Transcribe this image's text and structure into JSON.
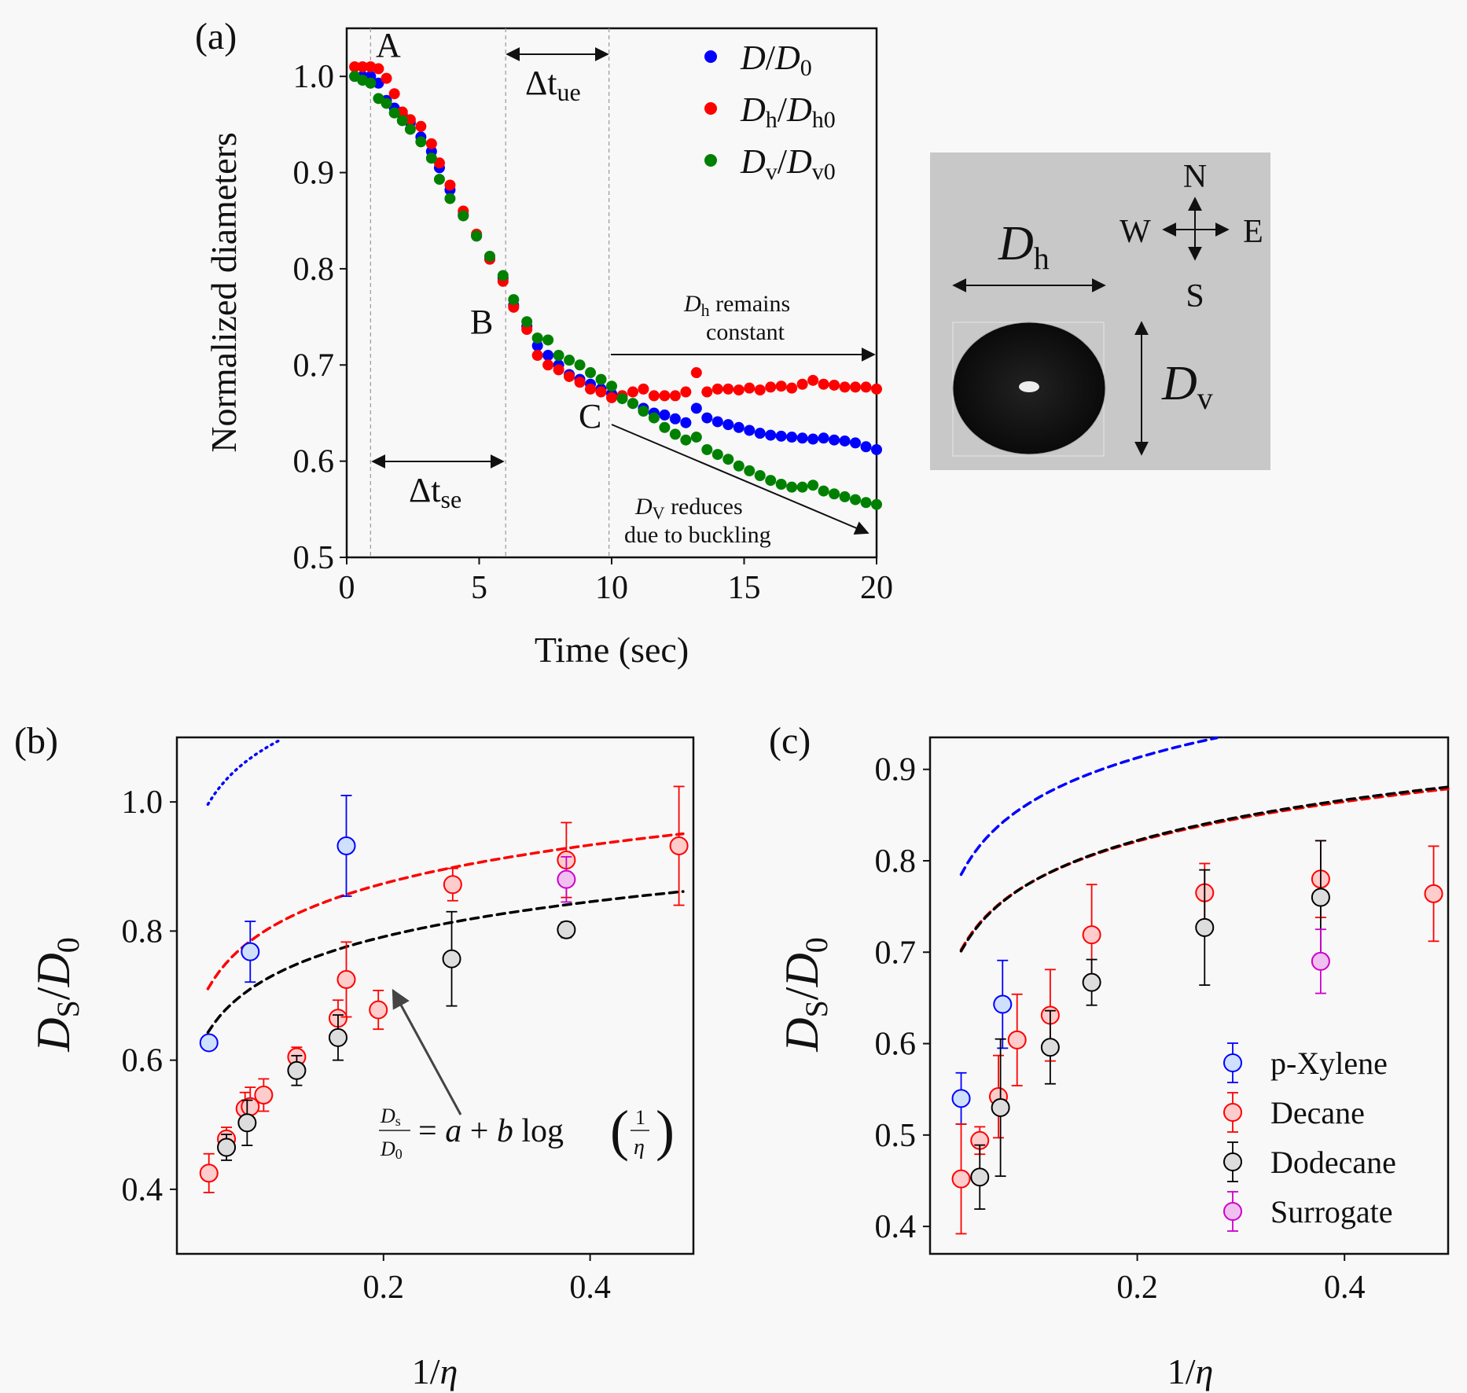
{
  "chart_data": [
    {
      "panel": "(a)",
      "type": "scatter",
      "xlabel": "Time (sec)",
      "ylabel": "Normalized diameters",
      "xlim": [
        0,
        20
      ],
      "ylim": [
        0.5,
        1.05
      ],
      "xticks": [
        "0",
        "5",
        "10",
        "15",
        "20"
      ],
      "yticks": [
        "0.5",
        "0.6",
        "0.7",
        "0.8",
        "0.9",
        "1.0"
      ],
      "series": [
        {
          "name": "D/D0",
          "label_main": "D",
          "label_den": "D",
          "label_den_sub": "0",
          "label_main_sub": "",
          "color": "#0000ff",
          "x": [
            0.3,
            0.6,
            0.9,
            1.2,
            1.5,
            1.8,
            2.1,
            2.4,
            2.8,
            3.2,
            3.5,
            3.9,
            4.4,
            4.9,
            5.4,
            5.9,
            6.3,
            6.8,
            7.2,
            7.6,
            8.0,
            8.4,
            8.8,
            9.2,
            9.6,
            10.0,
            10.4,
            10.8,
            11.2,
            11.6,
            12.0,
            12.4,
            12.8,
            13.2,
            13.6,
            14.0,
            14.4,
            14.8,
            15.2,
            15.6,
            16.0,
            16.4,
            16.8,
            17.2,
            17.6,
            18.0,
            18.4,
            18.8,
            19.2,
            19.6,
            20.0
          ],
          "y": [
            1.0,
            1.0,
            1.0,
            0.993,
            0.975,
            0.967,
            0.96,
            0.952,
            0.937,
            0.922,
            0.905,
            0.882,
            0.856,
            0.834,
            0.81,
            0.79,
            0.762,
            0.74,
            0.72,
            0.71,
            0.7,
            0.69,
            0.685,
            0.68,
            0.675,
            0.67,
            0.668,
            0.66,
            0.655,
            0.65,
            0.648,
            0.644,
            0.64,
            0.655,
            0.645,
            0.641,
            0.638,
            0.635,
            0.632,
            0.629,
            0.627,
            0.626,
            0.625,
            0.624,
            0.623,
            0.624,
            0.622,
            0.621,
            0.619,
            0.615,
            0.612
          ]
        },
        {
          "name": "Dh/Dh0",
          "label_main": "D",
          "label_main_sub": "h",
          "label_den": "D",
          "label_den_sub": "h0",
          "color": "#ff0000",
          "x": [
            0.3,
            0.6,
            0.9,
            1.2,
            1.5,
            1.8,
            2.1,
            2.4,
            2.8,
            3.2,
            3.5,
            3.9,
            4.4,
            4.9,
            5.4,
            5.9,
            6.3,
            6.8,
            7.2,
            7.6,
            8.0,
            8.4,
            8.8,
            9.2,
            9.6,
            10.0,
            10.4,
            10.8,
            11.2,
            11.6,
            12.0,
            12.4,
            12.8,
            13.2,
            13.6,
            14.0,
            14.4,
            14.8,
            15.2,
            15.6,
            16.0,
            16.4,
            16.8,
            17.2,
            17.6,
            18.0,
            18.4,
            18.8,
            19.2,
            19.6,
            20.0
          ],
          "y": [
            1.01,
            1.01,
            1.01,
            1.008,
            0.998,
            0.982,
            0.963,
            0.955,
            0.948,
            0.93,
            0.91,
            0.887,
            0.86,
            0.836,
            0.81,
            0.787,
            0.76,
            0.737,
            0.71,
            0.7,
            0.695,
            0.688,
            0.682,
            0.675,
            0.672,
            0.666,
            0.668,
            0.672,
            0.675,
            0.668,
            0.668,
            0.668,
            0.672,
            0.692,
            0.672,
            0.675,
            0.675,
            0.674,
            0.676,
            0.674,
            0.677,
            0.678,
            0.676,
            0.68,
            0.684,
            0.68,
            0.679,
            0.677,
            0.677,
            0.677,
            0.675
          ]
        },
        {
          "name": "Dv/Dv0",
          "label_main": "D",
          "label_main_sub": "v",
          "label_den": "D",
          "label_den_sub": "v0",
          "color": "#008000",
          "x": [
            0.3,
            0.6,
            0.9,
            1.2,
            1.5,
            1.8,
            2.1,
            2.4,
            2.8,
            3.2,
            3.5,
            3.9,
            4.4,
            4.9,
            5.4,
            5.9,
            6.3,
            6.8,
            7.2,
            7.6,
            8.0,
            8.4,
            8.8,
            9.2,
            9.6,
            10.0,
            10.4,
            10.8,
            11.2,
            11.6,
            12.0,
            12.4,
            12.8,
            13.2,
            13.6,
            14.0,
            14.4,
            14.8,
            15.2,
            15.6,
            16.0,
            16.4,
            16.8,
            17.2,
            17.6,
            18.0,
            18.4,
            18.8,
            19.2,
            19.6,
            20.0
          ],
          "y": [
            1.0,
            0.996,
            0.993,
            0.977,
            0.972,
            0.962,
            0.954,
            0.945,
            0.932,
            0.915,
            0.893,
            0.873,
            0.855,
            0.834,
            0.813,
            0.793,
            0.768,
            0.745,
            0.728,
            0.726,
            0.71,
            0.705,
            0.7,
            0.692,
            0.685,
            0.678,
            0.665,
            0.66,
            0.652,
            0.645,
            0.635,
            0.628,
            0.622,
            0.625,
            0.612,
            0.607,
            0.602,
            0.595,
            0.59,
            0.585,
            0.58,
            0.576,
            0.573,
            0.573,
            0.575,
            0.569,
            0.566,
            0.563,
            0.56,
            0.557,
            0.555
          ]
        }
      ],
      "annotations": {
        "A": "A",
        "B": "B",
        "C": "C",
        "dt_se": "Δt",
        "dt_se_sub": "se",
        "dt_ue": "Δt",
        "dt_ue_sub": "ue",
        "dh_line1_main": "D",
        "dh_line1_sub": "h",
        "dh_line1_rest": " remains",
        "dh_line2": "constant",
        "dv_line1_main": "D",
        "dv_line1_sub": "V",
        "dv_line1_rest": " reduces",
        "dv_line2": "due to buckling"
      }
    },
    {
      "panel": "(b)",
      "type": "scatter",
      "xlabel": "1/η",
      "ylabel": "Ds/D0",
      "xlim": [
        0.0,
        0.5
      ],
      "ylim": [
        0.3,
        1.1
      ],
      "xticks": [
        "0.2",
        "0.4"
      ],
      "yticks": [
        "0.4",
        "0.6",
        "0.8",
        "1.0"
      ],
      "formula": "Ds/D0 = a + b log(1/η)",
      "series": [
        {
          "name": "p-Xylene",
          "color": "#0000ff",
          "fill": "#cfe0ff",
          "x": [
            0.031,
            0.071,
            0.164
          ],
          "y": [
            0.627,
            0.768,
            0.932
          ],
          "err": [
            0.0,
            0.047,
            0.078
          ]
        },
        {
          "name": "Decane",
          "color": "#ff0000",
          "fill": "#ffcccc",
          "x": [
            0.031,
            0.048,
            0.066,
            0.071,
            0.084,
            0.116,
            0.156,
            0.164,
            0.195,
            0.267,
            0.377,
            0.486
          ],
          "y": [
            0.425,
            0.478,
            0.525,
            0.528,
            0.546,
            0.605,
            0.665,
            0.725,
            0.678,
            0.872,
            0.91,
            0.932
          ],
          "err": [
            0.03,
            0.018,
            0.025,
            0.03,
            0.025,
            0.015,
            0.028,
            0.058,
            0.03,
            0.025,
            0.058,
            0.092
          ]
        },
        {
          "name": "Dodecane",
          "color": "#000000",
          "fill": "#dddddd",
          "x": [
            0.048,
            0.068,
            0.116,
            0.156,
            0.266,
            0.377
          ],
          "y": [
            0.465,
            0.503,
            0.584,
            0.635,
            0.757,
            0.802
          ],
          "err": [
            0.02,
            0.035,
            0.023,
            0.035,
            0.073,
            0.012
          ]
        },
        {
          "name": "Surrogate",
          "color": "#cc00cc",
          "fill": "#f0c0f0",
          "x": [
            0.377
          ],
          "y": [
            0.88
          ],
          "err": [
            0.035
          ]
        }
      ],
      "fits": [
        {
          "color": "#0000ff",
          "style": "dotted",
          "a": 1.287,
          "b": 0.191,
          "xmin": 0.03,
          "xmax": 0.5
        },
        {
          "color": "#ff0000",
          "style": "dashed",
          "a": 1.012,
          "b": 0.198,
          "xmin": 0.03,
          "xmax": 0.49
        },
        {
          "color": "#000000",
          "style": "dashed",
          "a": 0.917,
          "b": 0.18,
          "xmin": 0.03,
          "xmax": 0.49
        }
      ]
    },
    {
      "panel": "(c)",
      "type": "scatter",
      "xlabel": "1/η",
      "ylabel": "Ds/D0",
      "xlim": [
        0.0,
        0.5
      ],
      "ylim": [
        0.37,
        0.935
      ],
      "xticks": [
        "0.2",
        "0.4"
      ],
      "yticks": [
        "0.4",
        "0.5",
        "0.6",
        "0.7",
        "0.8",
        "0.9"
      ],
      "legend": [
        "p-Xylene",
        "Decane",
        "Dodecane",
        "Surrogate"
      ],
      "series": [
        {
          "name": "p-Xylene",
          "color": "#0000ff",
          "fill": "#cfe0ff",
          "x": [
            0.03,
            0.07
          ],
          "y": [
            0.54,
            0.643
          ],
          "err": [
            0.028,
            0.048
          ]
        },
        {
          "name": "Decane",
          "color": "#ff0000",
          "fill": "#ffcccc",
          "x": [
            0.03,
            0.048,
            0.066,
            0.084,
            0.116,
            0.156,
            0.265,
            0.377,
            0.486
          ],
          "y": [
            0.452,
            0.494,
            0.542,
            0.604,
            0.631,
            0.719,
            0.765,
            0.78,
            0.764
          ],
          "err": [
            0.06,
            0.015,
            0.045,
            0.05,
            0.05,
            0.055,
            0.032,
            0.042,
            0.052
          ]
        },
        {
          "name": "Dodecane",
          "color": "#000000",
          "fill": "#dddddd",
          "x": [
            0.048,
            0.068,
            0.116,
            0.156,
            0.265,
            0.377
          ],
          "y": [
            0.454,
            0.53,
            0.596,
            0.667,
            0.727,
            0.76
          ],
          "err": [
            0.035,
            0.075,
            0.04,
            0.025,
            0.063,
            0.062
          ]
        },
        {
          "name": "Surrogate",
          "color": "#cc00cc",
          "fill": "#f0c0f0",
          "x": [
            0.377
          ],
          "y": [
            0.69
          ],
          "err": [
            0.035
          ]
        }
      ],
      "fits": [
        {
          "color": "#0000ff",
          "style": "dashed",
          "a": 1.021,
          "b": 0.155,
          "xmin": 0.03,
          "xmax": 0.5
        },
        {
          "color": "#ff0000",
          "style": "dashed",
          "a": 0.922,
          "b": 0.144,
          "xmin": 0.03,
          "xmax": 0.5
        },
        {
          "color": "#000000",
          "style": "dashed",
          "a": 0.925,
          "b": 0.147,
          "xmin": 0.03,
          "xmax": 0.5
        }
      ]
    }
  ],
  "inset": {
    "label_dh_main": "D",
    "label_dh_sub": "h",
    "label_dv_main": "D",
    "label_dv_sub": "v",
    "compass_n": "N",
    "compass_s": "S",
    "compass_e": "E",
    "compass_w": "W",
    "background": "#c8c8c8",
    "droplet": "#111111"
  }
}
